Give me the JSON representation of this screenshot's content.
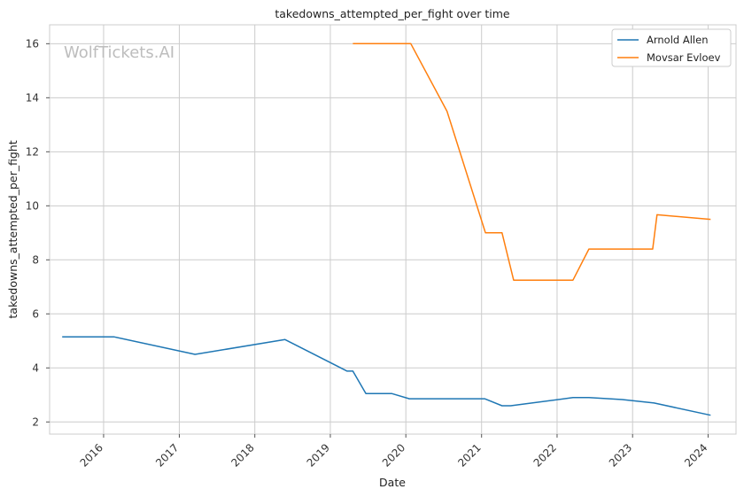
{
  "chart_data": {
    "type": "line",
    "title": "takedowns_attempted_per_fight over time",
    "xlabel": "Date",
    "ylabel": "takedowns_attempted_per_fight",
    "watermark": "WolfTickets.AI",
    "grid": true,
    "legend_position": "top-right",
    "xlim": [
      "2015-04-15",
      "2024-05-15"
    ],
    "ylim": [
      1.55,
      16.7
    ],
    "x_ticks": [
      "2016",
      "2017",
      "2018",
      "2019",
      "2020",
      "2021",
      "2022",
      "2023",
      "2024"
    ],
    "y_ticks": [
      2,
      4,
      6,
      8,
      10,
      12,
      14,
      16
    ],
    "series": [
      {
        "name": "Arnold Allen",
        "color": "#1f77b4",
        "points": [
          {
            "x": "2015-06-15",
            "y": 5.15
          },
          {
            "x": "2016-02-20",
            "y": 5.15
          },
          {
            "x": "2017-03-18",
            "y": 4.5
          },
          {
            "x": "2018-05-27",
            "y": 5.05
          },
          {
            "x": "2019-03-23",
            "y": 3.88
          },
          {
            "x": "2019-04-20",
            "y": 3.88
          },
          {
            "x": "2019-06-22",
            "y": 3.05
          },
          {
            "x": "2019-10-26",
            "y": 3.05
          },
          {
            "x": "2020-01-18",
            "y": 2.86
          },
          {
            "x": "2021-01-16",
            "y": 2.86
          },
          {
            "x": "2021-04-10",
            "y": 2.6
          },
          {
            "x": "2021-05-22",
            "y": 2.6
          },
          {
            "x": "2022-03-19",
            "y": 2.9
          },
          {
            "x": "2022-06-04",
            "y": 2.9
          },
          {
            "x": "2022-11-12",
            "y": 2.83
          },
          {
            "x": "2023-04-15",
            "y": 2.7
          },
          {
            "x": "2024-01-13",
            "y": 2.25
          }
        ]
      },
      {
        "name": "Movsar Evloev",
        "color": "#ff7f0e",
        "points": [
          {
            "x": "2019-04-20",
            "y": 16
          },
          {
            "x": "2020-01-25",
            "y": 16
          },
          {
            "x": "2020-07-18",
            "y": 13.5
          },
          {
            "x": "2021-01-20",
            "y": 9.0
          },
          {
            "x": "2021-04-10",
            "y": 9.0
          },
          {
            "x": "2021-06-05",
            "y": 7.25
          },
          {
            "x": "2022-03-19",
            "y": 7.25
          },
          {
            "x": "2022-06-04",
            "y": 8.4
          },
          {
            "x": "2023-04-08",
            "y": 8.4
          },
          {
            "x": "2023-04-29",
            "y": 9.67
          },
          {
            "x": "2024-01-13",
            "y": 9.5
          }
        ]
      }
    ]
  }
}
